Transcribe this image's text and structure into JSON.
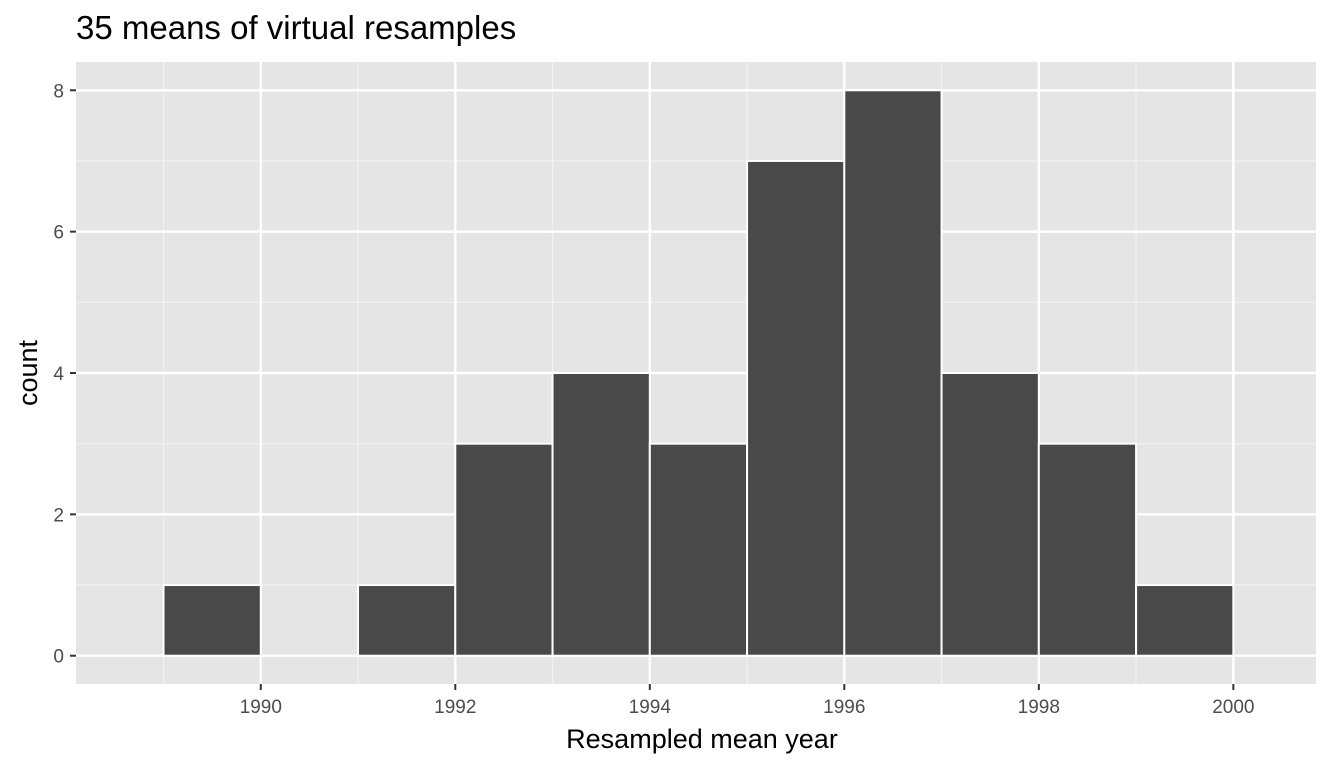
{
  "chart_data": {
    "type": "histogram",
    "title": "35 means of virtual resamples",
    "xlabel": "Resampled mean year",
    "ylabel": "count",
    "x_ticks": [
      1990,
      1992,
      1994,
      1996,
      1998,
      2000
    ],
    "y_ticks": [
      0,
      2,
      4,
      6,
      8
    ],
    "xlim": [
      1988.1,
      2000.85
    ],
    "ylim": [
      -0.4,
      8.4
    ],
    "bin_width": 1,
    "bins": [
      {
        "start": 1989,
        "end": 1990,
        "count": 1
      },
      {
        "start": 1990,
        "end": 1991,
        "count": 0
      },
      {
        "start": 1991,
        "end": 1992,
        "count": 1
      },
      {
        "start": 1992,
        "end": 1993,
        "count": 3
      },
      {
        "start": 1993,
        "end": 1994,
        "count": 4
      },
      {
        "start": 1994,
        "end": 1995,
        "count": 3
      },
      {
        "start": 1995,
        "end": 1996,
        "count": 7
      },
      {
        "start": 1996,
        "end": 1997,
        "count": 8
      },
      {
        "start": 1997,
        "end": 1998,
        "count": 4
      },
      {
        "start": 1998,
        "end": 1999,
        "count": 3
      },
      {
        "start": 1999,
        "end": 2000,
        "count": 1
      }
    ],
    "grid": true,
    "legend": "none",
    "colors": {
      "panel_background": "#e5e5e5",
      "grid_major": "#ffffff",
      "grid_minor": "#f2f2f2",
      "bar_fill": "#494949",
      "bar_outline": "#ffffff",
      "tick_text": "#4d4d4d",
      "tick_mark": "#333333",
      "title_text": "#000000"
    }
  }
}
